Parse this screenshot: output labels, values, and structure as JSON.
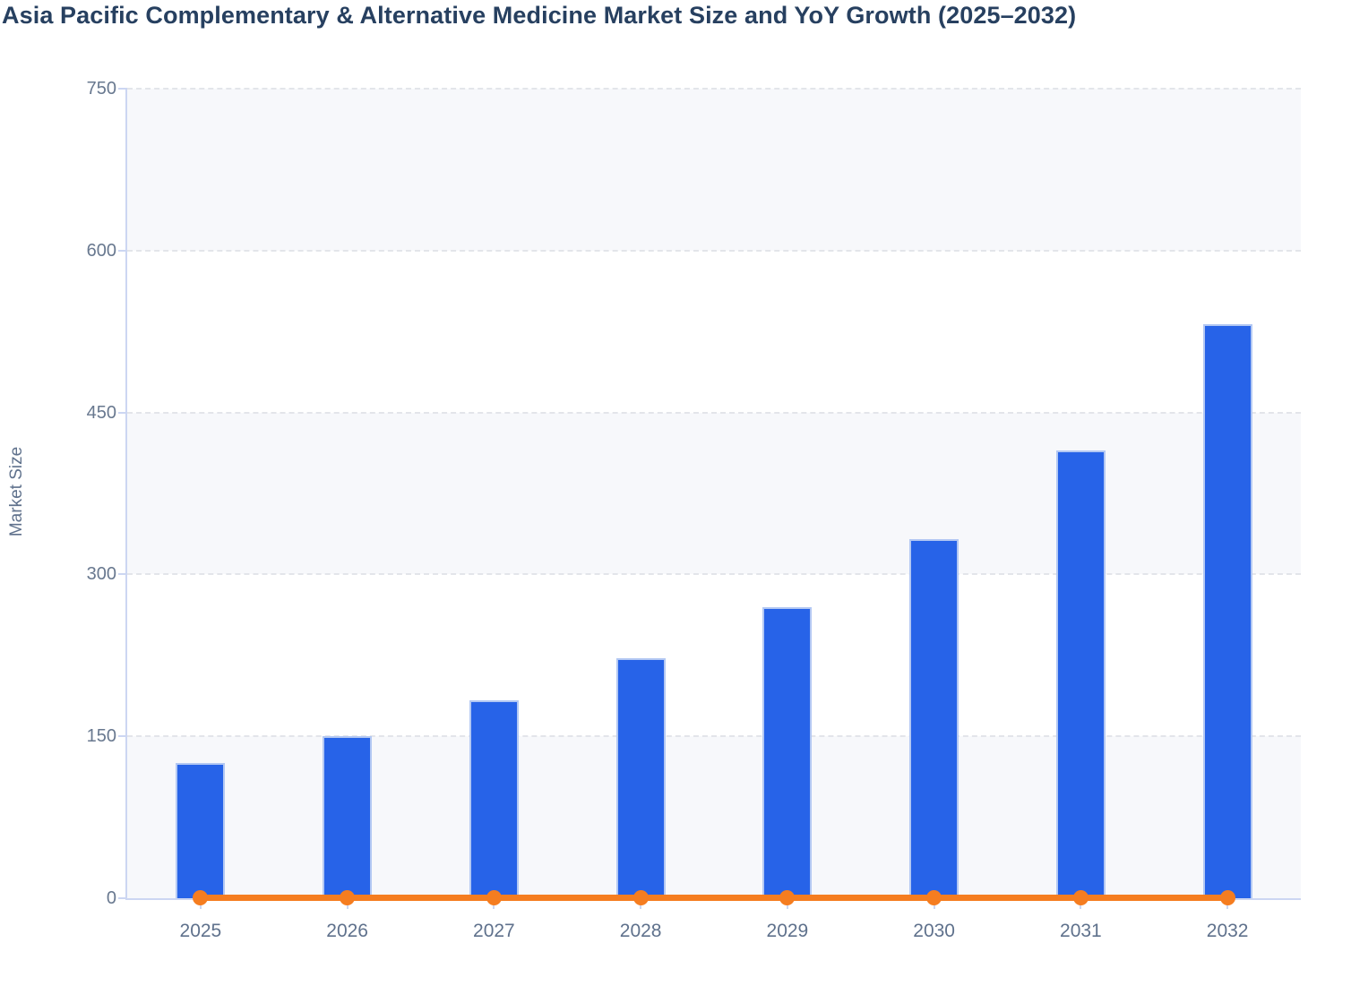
{
  "chart_data": {
    "type": "bar",
    "title": "Asia Pacific Complementary & Alternative Medicine Market Size and YoY Growth (2025–2032)",
    "xlabel": "",
    "ylabel": "Market Size",
    "categories": [
      "2025",
      "2026",
      "2027",
      "2028",
      "2029",
      "2030",
      "2031",
      "2032"
    ],
    "series": [
      {
        "name": "Market Size",
        "type": "bar",
        "values": [
          125,
          150,
          183,
          222,
          270,
          333,
          415,
          532
        ]
      },
      {
        "name": "YoY Growth",
        "type": "line",
        "values": [
          0,
          0,
          0,
          0,
          0,
          0,
          0,
          0
        ]
      }
    ],
    "ylim": [
      0,
      750
    ],
    "yticks": [
      0,
      150,
      300,
      450,
      600,
      750
    ],
    "legend": "none",
    "grid": "horizontal dashed gridlines at each y tick",
    "plot_bands": "alternating light fill between gridline pairs (0-150, 300-450, 600-750)",
    "line_layout_hint": "YoY growth line renders flat along the zero baseline with circular markers at each year"
  },
  "colors": {
    "background": "#ffffff",
    "title": "#274060",
    "bar_fill": "#2763e8",
    "bar_border": "#b3c8f3",
    "line": "#f57d20",
    "marker": "#f57d20",
    "axis_line": "#ccd6f2",
    "band_fill": "#f7f8fb",
    "gridline": "#e3e5ea",
    "y_tick_label": "#68788f",
    "x_tick_label": "#5f718c",
    "y_axis_title": "#5f718c"
  }
}
